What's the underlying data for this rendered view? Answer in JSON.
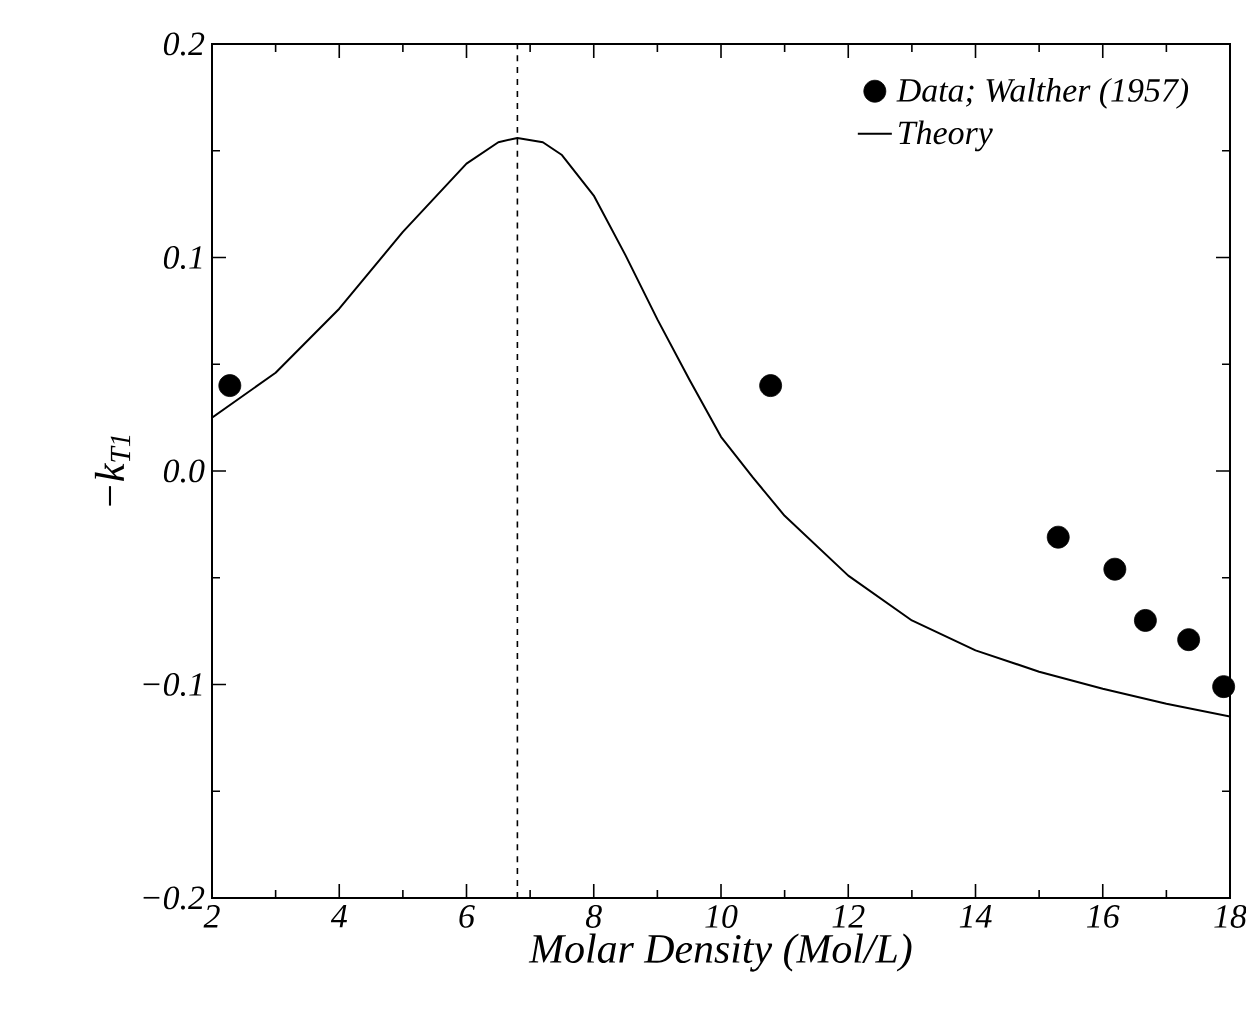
{
  "chart_data": {
    "type": "line",
    "xlabel": "Molar Density (Mol/L)",
    "ylabel": "−k$_{T1}$",
    "xlim": [
      2,
      18
    ],
    "xticks": [
      2,
      4,
      6,
      8,
      10,
      12,
      14,
      16,
      18
    ],
    "ylim": [
      -0.2,
      0.2
    ],
    "yticks": [
      {
        "value": -0.2,
        "label": "−0.2"
      },
      {
        "value": -0.1,
        "label": "−0.1"
      },
      {
        "value": 0,
        "label": "0.0"
      },
      0.1,
      0.2
    ],
    "legend": "top right",
    "grid": false,
    "ref_lines": [
      {
        "axis": "x",
        "value": 6.8,
        "color": "#000000",
        "line_style": "dashed"
      }
    ],
    "series": [
      {
        "name": "Data; Walther (1957)",
        "type": "scatter",
        "marker": "circle",
        "color": "#000000",
        "x": [
          2.28,
          10.78,
          15.3,
          16.19,
          16.67,
          17.35,
          17.9
        ],
        "values": [
          0.04,
          0.04,
          -0.031,
          -0.046,
          -0.07,
          -0.079,
          -0.101
        ]
      },
      {
        "name": "Theory",
        "line_style": "solid",
        "color": "#000000",
        "x": [
          2,
          3,
          4,
          5,
          6,
          6.5,
          6.8,
          7.2,
          7.5,
          8,
          8.5,
          9,
          9.5,
          10,
          10.5,
          11,
          12,
          13,
          14,
          15,
          16,
          17,
          18
        ],
        "values": [
          0.025,
          0.046,
          0.076,
          0.112,
          0.144,
          0.154,
          0.156,
          0.154,
          0.148,
          0.129,
          0.101,
          0.071,
          0.043,
          0.016,
          -0.003,
          -0.021,
          -0.049,
          -0.07,
          -0.084,
          -0.094,
          -0.102,
          -0.109,
          -0.115
        ]
      }
    ]
  }
}
